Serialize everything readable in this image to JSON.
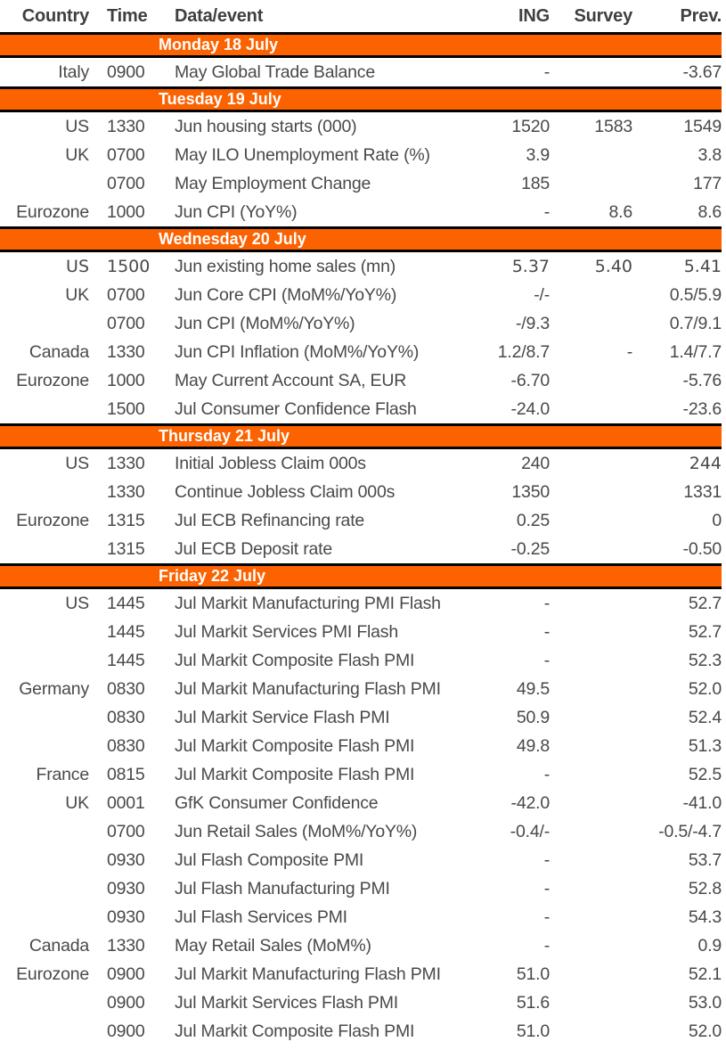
{
  "colors": {
    "accent_orange": "#fc6200",
    "divider_black": "#000000",
    "header_text": "#3e3f41",
    "body_text": "#48494b",
    "day_bar_text": "#ffffff"
  },
  "table": {
    "columns": [
      "Country",
      "Time",
      "Data/event",
      "ING",
      "Survey",
      "Prev."
    ],
    "sections": [
      {
        "day": "Monday 18 July",
        "rows": [
          {
            "country": "Italy",
            "time": "0900",
            "event": "May Global Trade Balance",
            "ing": "-",
            "survey": "",
            "prev": "-3.67"
          }
        ]
      },
      {
        "day": "Tuesday 19 July",
        "rows": [
          {
            "country": "US",
            "time": "1330",
            "event": "Jun housing starts (000)",
            "ing": "1520",
            "survey": "1583",
            "prev": "1549"
          },
          {
            "country": "UK",
            "time": "0700",
            "event": "May ILO Unemployment Rate (%)",
            "ing": "3.9",
            "survey": "",
            "prev": "3.8"
          },
          {
            "country": "",
            "time": "0700",
            "event": "May Employment Change",
            "ing": "185",
            "survey": "",
            "prev": "177"
          },
          {
            "country": "Eurozone",
            "time": "1000",
            "event": "Jun CPI (YoY%)",
            "ing": "-",
            "survey": "8.6",
            "prev": "8.6"
          }
        ]
      },
      {
        "day": "Wednesday 20 July",
        "rows": [
          {
            "country": "US",
            "time": "1500",
            "event": "Jun existing home sales (mn)",
            "ing": "5.37",
            "survey": "5.40",
            "prev": "5.41",
            "alt": [
              "country",
              "time",
              "ing",
              "survey",
              "prev"
            ]
          },
          {
            "country": "UK",
            "time": "0700",
            "event": "Jun Core CPI (MoM%/YoY%)",
            "ing": "-/-",
            "survey": "",
            "prev": "0.5/5.9"
          },
          {
            "country": "",
            "time": "0700",
            "event": "Jun CPI (MoM%/YoY%)",
            "ing": "-/9.3",
            "survey": "",
            "prev": "0.7/9.1"
          },
          {
            "country": "Canada",
            "time": "1330",
            "event": "Jun CPI Inflation (MoM%/YoY%)",
            "ing": "1.2/8.7",
            "survey": "-",
            "prev": "1.4/7.7"
          },
          {
            "country": "Eurozone",
            "time": "1000",
            "event": "May Current Account SA, EUR",
            "ing": "-6.70",
            "survey": "",
            "prev": "-5.76"
          },
          {
            "country": "",
            "time": "1500",
            "event": "Jul Consumer Confidence Flash",
            "ing": "-24.0",
            "survey": "",
            "prev": "-23.6"
          }
        ]
      },
      {
        "day": "Thursday 21 July",
        "rows": [
          {
            "country": "US",
            "time": "1330",
            "event": "Initial Jobless Claim 000s",
            "ing": "240",
            "survey": "",
            "prev": "244",
            "alt": [
              "prev"
            ]
          },
          {
            "country": "",
            "time": "1330",
            "event": "Continue Jobless Claim 000s",
            "ing": "1350",
            "survey": "",
            "prev": "1331"
          },
          {
            "country": "Eurozone",
            "time": "1315",
            "event": "Jul ECB Refinancing rate",
            "ing": "0.25",
            "survey": "",
            "prev": "0"
          },
          {
            "country": "",
            "time": "1315",
            "event": "Jul ECB Deposit rate",
            "ing": "-0.25",
            "survey": "",
            "prev": "-0.50"
          }
        ]
      },
      {
        "day": "Friday 22 July",
        "rows": [
          {
            "country": "US",
            "time": "1445",
            "event": "Jul Markit Manufacturing PMI Flash",
            "ing": "-",
            "survey": "",
            "prev": "52.7"
          },
          {
            "country": "",
            "time": "1445",
            "event": "Jul Markit Services PMI Flash",
            "ing": "-",
            "survey": "",
            "prev": "52.7"
          },
          {
            "country": "",
            "time": "1445",
            "event": "Jul Markit Composite Flash PMI",
            "ing": "-",
            "survey": "",
            "prev": "52.3"
          },
          {
            "country": "Germany",
            "time": "0830",
            "event": "Jul Markit Manufacturing Flash PMI",
            "ing": "49.5",
            "survey": "",
            "prev": "52.0"
          },
          {
            "country": "",
            "time": "0830",
            "event": "Jul Markit Service Flash PMI",
            "ing": "50.9",
            "survey": "",
            "prev": "52.4"
          },
          {
            "country": "",
            "time": "0830",
            "event": "Jul Markit Composite Flash PMI",
            "ing": "49.8",
            "survey": "",
            "prev": "51.3"
          },
          {
            "country": "France",
            "time": "0815",
            "event": "Jul Markit Composite Flash PMI",
            "ing": "-",
            "survey": "",
            "prev": "52.5"
          },
          {
            "country": "UK",
            "time": "0001",
            "event": "GfK Consumer Confidence",
            "ing": "-42.0",
            "survey": "",
            "prev": "-41.0"
          },
          {
            "country": "",
            "time": "0700",
            "event": "Jun Retail Sales (MoM%/YoY%)",
            "ing": "-0.4/-",
            "survey": "",
            "prev": "-0.5/-4.7"
          },
          {
            "country": "",
            "time": "0930",
            "event": "Jul Flash Composite PMI",
            "ing": "-",
            "survey": "",
            "prev": "53.7"
          },
          {
            "country": "",
            "time": "0930",
            "event": "Jul Flash Manufacturing PMI",
            "ing": "-",
            "survey": "",
            "prev": "52.8"
          },
          {
            "country": "",
            "time": "0930",
            "event": "Jul Flash Services PMI",
            "ing": "-",
            "survey": "",
            "prev": "54.3"
          },
          {
            "country": "Canada",
            "time": "1330",
            "event": "May Retail Sales (MoM%)",
            "ing": "-",
            "survey": "",
            "prev": "0.9"
          },
          {
            "country": "Eurozone",
            "time": "0900",
            "event": "Jul Markit Manufacturing Flash PMI",
            "ing": "51.0",
            "survey": "",
            "prev": "52.1"
          },
          {
            "country": "",
            "time": "0900",
            "event": "Jul Markit Services Flash PMI",
            "ing": "51.6",
            "survey": "",
            "prev": "53.0"
          },
          {
            "country": "",
            "time": "0900",
            "event": "Jul Markit Composite Flash PMI",
            "ing": "51.0",
            "survey": "",
            "prev": "52.0"
          }
        ]
      }
    ]
  }
}
